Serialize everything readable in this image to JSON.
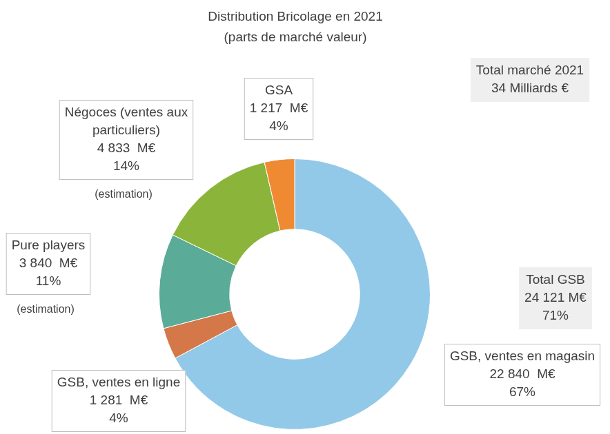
{
  "chart_data": {
    "type": "doughnut",
    "title": "Distribution Bricolage en 2021",
    "subtitle": "(parts de marché valeur)",
    "categories": [
      "GSB, ventes en magasin",
      "GSB, ventes en ligne",
      "Pure players",
      "Négoces (ventes aux particuliers)",
      "GSA"
    ],
    "values": [
      22840,
      1281,
      3840,
      4833,
      1217
    ],
    "value_labels": [
      "22 840  M€",
      "1 281  M€",
      "3 840  M€",
      "4 833  M€",
      "1 217  M€"
    ],
    "percent_labels": [
      "67%",
      "4%",
      "11%",
      "14%",
      "4%"
    ],
    "colors": [
      "#93c9e8",
      "#d4784a",
      "#5aab98",
      "#8bb53a",
      "#ef8a33"
    ],
    "data_labels": true,
    "annotations": [
      {
        "text": "(estimation)",
        "category": "Négoces (ventes aux particuliers)"
      },
      {
        "text": "(estimation)",
        "category": "Pure players"
      },
      {
        "lines": [
          "Total GSB",
          "24 121 M€",
          "71%"
        ]
      },
      {
        "lines": [
          "Total marché 2021",
          "34 Milliards €"
        ]
      }
    ]
  }
}
